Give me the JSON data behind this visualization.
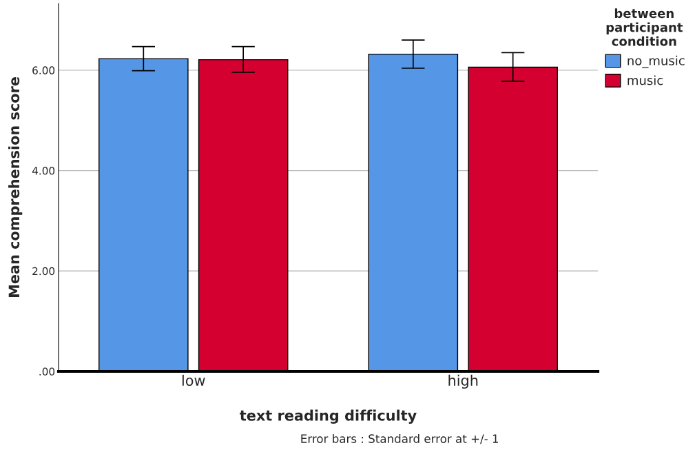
{
  "chart_data": {
    "type": "bar",
    "xlabel": "text reading difficulty",
    "ylabel": "Mean comprehension score",
    "legend_title": "between\nparticipant\ncondition",
    "categories": [
      "low",
      "high"
    ],
    "series": [
      {
        "name": "no_music",
        "color": "#5596e6",
        "values": [
          6.23,
          6.32
        ],
        "errors": [
          [
            5.99,
            6.47
          ],
          [
            6.04,
            6.6
          ]
        ]
      },
      {
        "name": "music",
        "color": "#d4002f",
        "values": [
          6.21,
          6.06
        ],
        "errors": [
          [
            5.96,
            6.47
          ],
          [
            5.78,
            6.35
          ]
        ]
      }
    ],
    "ylim": [
      0,
      7.33
    ],
    "yticks": [
      {
        "value": 0,
        "label": ".00"
      },
      {
        "value": 2,
        "label": "2.00"
      },
      {
        "value": 4,
        "label": "4.00"
      },
      {
        "value": 6,
        "label": "6.00"
      }
    ],
    "grid": "y",
    "legend": "top right",
    "annotations": [
      "Error bars : Standard error at +/- 1"
    ]
  }
}
